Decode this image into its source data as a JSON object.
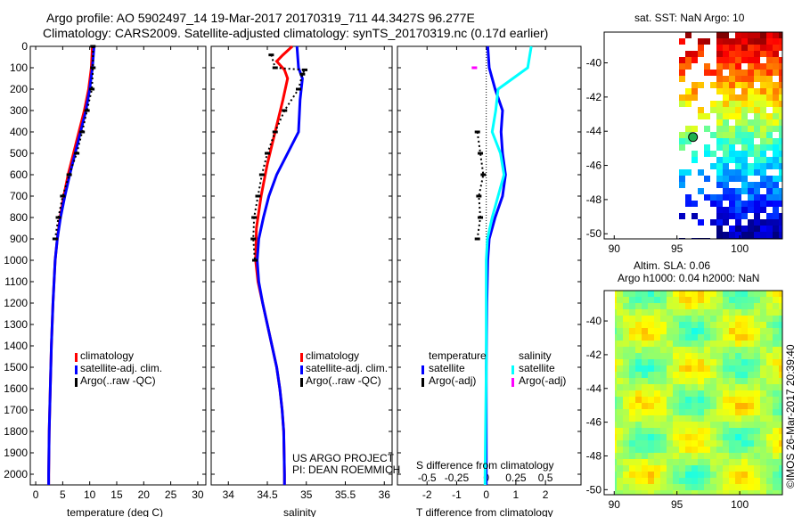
{
  "title_line1": "Argo profile: AO 5902497_14 19-Mar-2017 20170319_711 44.3427S 96.277E",
  "title_line2": "Climatology: CARS2009. Satellite-adjusted climatology: synTS_20170319.nc (0.17d earlier)",
  "chart_data": [
    {
      "type": "line",
      "xlabel": "temperature (deg C)",
      "xlim": [
        -1,
        31.5
      ],
      "ylim": [
        2050,
        0
      ],
      "xticks": [
        "0",
        "5",
        "10",
        "15",
        "20",
        "25",
        "30"
      ],
      "xtick_values": [
        0,
        5,
        10,
        15,
        20,
        25,
        30
      ],
      "yticks": [
        "0",
        "100",
        "200",
        "300",
        "400",
        "500",
        "600",
        "700",
        "800",
        "900",
        "1000",
        "1100",
        "1200",
        "1300",
        "1400",
        "1500",
        "1600",
        "1700",
        "1800",
        "1900",
        "2000"
      ],
      "legend": [
        "climatology",
        "satellite-adj. clim.",
        "Argo(..raw -QC)"
      ],
      "series": [
        {
          "name": "climatology",
          "color": "#ff0000",
          "depth": [
            0,
            100,
            200,
            300,
            400,
            500,
            600,
            700,
            800,
            900,
            1000,
            1200,
            1400,
            1600,
            1800,
            2000,
            2050
          ],
          "values": [
            10.5,
            10.3,
            9.8,
            9.0,
            8.0,
            7.0,
            6.0,
            5.2,
            4.5,
            4.0,
            3.6,
            3.2,
            2.9,
            2.7,
            2.5,
            2.4,
            2.4
          ]
        },
        {
          "name": "satellite-adj. clim.",
          "color": "#0000ff",
          "depth": [
            0,
            100,
            200,
            300,
            400,
            500,
            600,
            700,
            800,
            900,
            1000,
            1200,
            1400,
            1600,
            1800,
            2000,
            2050
          ],
          "values": [
            10.8,
            10.5,
            10.0,
            9.3,
            8.3,
            7.3,
            6.3,
            5.4,
            4.6,
            4.0,
            3.6,
            3.2,
            2.9,
            2.7,
            2.5,
            2.4,
            2.4
          ]
        },
        {
          "name": "Argo(..raw -QC)",
          "color": "#000000",
          "depth": [
            0,
            100,
            200,
            300,
            400,
            500,
            600,
            700,
            800,
            900
          ],
          "values": [
            10.6,
            10.6,
            10.4,
            9.5,
            8.6,
            7.6,
            6.2,
            5.0,
            4.2,
            3.6
          ]
        }
      ]
    },
    {
      "type": "line",
      "xlabel": "salinity",
      "xlim": [
        33.78,
        36.1
      ],
      "ylim": [
        2050,
        0
      ],
      "xticks": [
        "34",
        "34.5",
        "35",
        "35.5",
        "36"
      ],
      "xtick_values": [
        34,
        34.5,
        35,
        35.5,
        36
      ],
      "legend": [
        "climatology",
        "satellite-adj. clim.",
        "Argo(..raw -QC)"
      ],
      "annotation": [
        "US ARGO PROJECT",
        "PI: DEAN ROEMMICH"
      ],
      "series": [
        {
          "name": "climatology",
          "color": "#ff0000",
          "depth": [
            0,
            40,
            70,
            110,
            150,
            250,
            400,
            550,
            700,
            850,
            1000,
            1100,
            1200,
            1300,
            1400,
            1500,
            1600,
            1700,
            1800,
            2000,
            2050
          ],
          "values": [
            34.82,
            34.7,
            34.62,
            34.72,
            34.76,
            34.7,
            34.6,
            34.5,
            34.42,
            34.36,
            34.35,
            34.38,
            34.44,
            34.5,
            34.56,
            34.62,
            34.66,
            34.69,
            34.71,
            34.72,
            34.72
          ]
        },
        {
          "name": "satellite-adj. clim.",
          "color": "#0000ff",
          "depth": [
            0,
            100,
            150,
            250,
            400,
            500,
            600,
            700,
            800,
            900,
            1000,
            1100,
            1200,
            1300,
            1400,
            1500,
            1600,
            1700,
            1800,
            2000,
            2050
          ],
          "values": [
            34.88,
            34.9,
            34.95,
            34.92,
            34.9,
            34.76,
            34.62,
            34.52,
            34.45,
            34.39,
            34.37,
            34.39,
            34.44,
            34.5,
            34.56,
            34.62,
            34.66,
            34.69,
            34.71,
            34.72,
            34.72
          ]
        },
        {
          "name": "Argo(..raw -QC)",
          "color": "#000000",
          "depth": [
            40,
            100,
            110,
            130,
            200,
            300,
            400,
            500,
            600,
            700,
            800,
            900,
            1000
          ],
          "values": [
            34.55,
            34.6,
            34.98,
            34.95,
            34.9,
            34.72,
            34.6,
            34.5,
            34.43,
            34.38,
            34.33,
            34.32,
            34.34
          ]
        }
      ]
    },
    {
      "type": "line",
      "xlabel": "T difference from climatology",
      "x2label": "S difference from climatology",
      "xlim": [
        -3,
        3.2
      ],
      "ylim": [
        2050,
        0
      ],
      "xticks": [
        "-2",
        "-1",
        "0",
        "1",
        "2"
      ],
      "xtick_values": [
        -2,
        -1,
        0,
        1,
        2
      ],
      "x2ticks": [
        "-0.5",
        "-0.25",
        "0",
        "0.25",
        "0.5"
      ],
      "x2tick_values": [
        -0.5,
        -0.25,
        0,
        0.25,
        0.5
      ],
      "legend_titles": [
        "temperature",
        "salinity"
      ],
      "legend": [
        "satellite",
        "Argo(-adj)",
        "satellite",
        "Argo(-adj)"
      ],
      "series": [
        {
          "name": "temperature satellite",
          "color": "#0000ff",
          "depth": [
            0,
            100,
            200,
            300,
            400,
            500,
            600,
            700,
            800,
            900,
            1000,
            1200,
            1500,
            2000,
            2050
          ],
          "values": [
            0.05,
            0.1,
            0.3,
            0.55,
            0.5,
            0.55,
            0.65,
            0.55,
            0.3,
            0.1,
            0.05,
            0.02,
            0.0,
            0.0,
            0.0
          ]
        },
        {
          "name": "temperature Argo(-adj)",
          "color": "#000000",
          "depth": [
            400,
            500,
            600,
            700,
            800,
            900
          ],
          "values": [
            -0.3,
            -0.2,
            -0.1,
            -0.25,
            -0.2,
            -0.3
          ]
        },
        {
          "name": "salinity satellite",
          "color": "#00ffff",
          "depth": [
            0,
            100,
            200,
            300,
            400,
            500,
            600,
            700,
            800,
            900,
            1000,
            1500,
            2000,
            2050
          ],
          "values": [
            0.38,
            0.35,
            0.1,
            0.08,
            0.05,
            0.12,
            0.15,
            0.1,
            0.05,
            0.01,
            0.0,
            0.0,
            -0.01,
            -0.01
          ]
        },
        {
          "name": "salinity Argo(-adj)",
          "color": "#ff00ff",
          "depth": [
            100
          ],
          "values": [
            -0.1
          ]
        }
      ]
    },
    {
      "type": "heatmap",
      "title": "sat. SST: NaN Argo: 10",
      "xlim": [
        89.2,
        103.4
      ],
      "ylim": [
        -50.3,
        -38.2
      ],
      "xticks": [
        "90",
        "95",
        "100"
      ],
      "yticks": [
        "-40",
        "-42",
        "-44",
        "-46",
        "-48",
        "-50"
      ],
      "argo_position": [
        96.277,
        -44.3427
      ]
    },
    {
      "type": "heatmap",
      "title": "Altim. SLA: 0.06",
      "subtitle": "Argo h1000: 0.04 h2000: NaN",
      "xlim": [
        89.2,
        103.4
      ],
      "ylim": [
        -50.3,
        -38.2
      ],
      "xticks": [
        "90",
        "95",
        "100"
      ],
      "yticks": [
        "-40",
        "-42",
        "-44",
        "-46",
        "-48",
        "-50"
      ]
    }
  ],
  "credit": "©IMOS 26-Mar-2017 20:39:40"
}
